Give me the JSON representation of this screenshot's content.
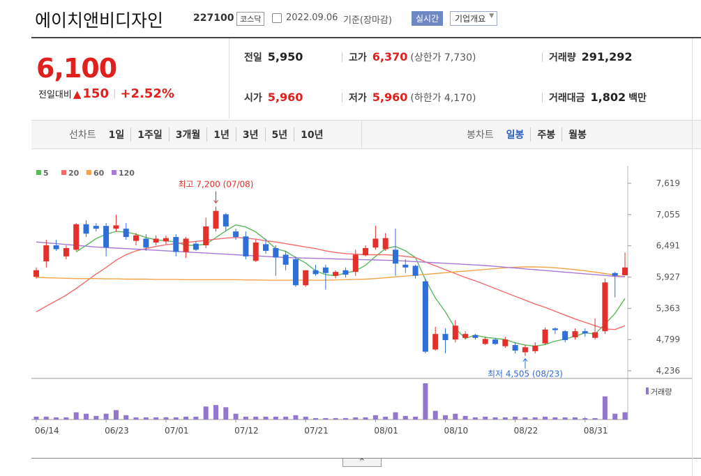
{
  "header": {
    "name": "에이치앤비디자인",
    "code": "227100",
    "market": "코스닥",
    "date": "2022.09.06",
    "basis": "기준(장마감)",
    "realtime_button": "실시간",
    "company_button": "기업개요"
  },
  "quote": {
    "price": "6,100",
    "change_label": "전일대비",
    "change": "150",
    "change_rate": "+2.52%",
    "rows": [
      [
        {
          "label": "전일",
          "value": "5,950"
        },
        {
          "label": "고가",
          "value": "6,370",
          "note": "(상한가 7,730)"
        },
        {
          "label": "거래량",
          "value": "291,292"
        }
      ],
      [
        {
          "label": "시가",
          "value": "5,960"
        },
        {
          "label": "저가",
          "value": "5,960",
          "note": "(하한가 4,170)"
        },
        {
          "label": "거래대금",
          "value": "1,802",
          "unit": "백만"
        }
      ]
    ]
  },
  "tabs": {
    "line": {
      "label": "선차트",
      "options": [
        "1일",
        "1주일",
        "3개월",
        "1년",
        "3년",
        "5년",
        "10년"
      ]
    },
    "candle": {
      "label": "봉차트",
      "options": [
        "일봉",
        "주봉",
        "월봉"
      ],
      "selected": 0
    }
  },
  "chart_data": {
    "type": "candlestick",
    "categories": [
      "06/14",
      null,
      null,
      null,
      null,
      null,
      null,
      "06/23",
      null,
      null,
      null,
      null,
      null,
      "07/01",
      null,
      null,
      null,
      null,
      null,
      null,
      "07/12",
      null,
      null,
      null,
      null,
      null,
      null,
      "07/21",
      null,
      null,
      null,
      null,
      null,
      null,
      "08/01",
      null,
      null,
      null,
      null,
      null,
      null,
      "08/10",
      null,
      null,
      null,
      null,
      null,
      null,
      "08/22",
      null,
      null,
      null,
      null,
      null,
      null,
      "08/31",
      null,
      null,
      null,
      null
    ],
    "open": [
      5930,
      6210,
      6500,
      6300,
      6420,
      6880,
      6850,
      6850,
      6800,
      6800,
      6580,
      6620,
      6550,
      6570,
      6650,
      6380,
      6530,
      6500,
      6800,
      7060,
      6750,
      6660,
      6220,
      6520,
      6450,
      6330,
      6250,
      5780,
      6050,
      6100,
      5950,
      6050,
      6020,
      6320,
      6460,
      6430,
      6420,
      6150,
      6130,
      5850,
      4620,
      4900,
      4800,
      4830,
      4880,
      4720,
      4800,
      4680,
      4700,
      4570,
      4590,
      4730,
      5000,
      4950,
      4840,
      4950,
      4830,
      4950,
      6000,
      5960
    ],
    "high": [
      6100,
      6600,
      6600,
      6500,
      6900,
      6950,
      6900,
      6900,
      7050,
      6900,
      6720,
      6700,
      6680,
      6680,
      6700,
      6650,
      6570,
      7000,
      7200,
      7080,
      6800,
      6750,
      6600,
      6620,
      6500,
      6400,
      6300,
      6050,
      6150,
      6150,
      6050,
      6100,
      6420,
      6500,
      6850,
      6720,
      6800,
      6250,
      6150,
      5900,
      5030,
      5000,
      5150,
      4950,
      4900,
      4850,
      4830,
      4850,
      4750,
      4700,
      4750,
      5020,
      5020,
      4970,
      5000,
      5000,
      5180,
      5900,
      6020,
      6370
    ],
    "low": [
      5900,
      6100,
      6400,
      6250,
      6400,
      6650,
      6750,
      6300,
      6750,
      6600,
      6500,
      6400,
      6500,
      6520,
      6300,
      6270,
      6400,
      6450,
      6750,
      6750,
      6600,
      6250,
      6200,
      6350,
      5950,
      6050,
      5750,
      5750,
      5950,
      5700,
      5900,
      5920,
      5950,
      6300,
      6420,
      6400,
      5950,
      6000,
      5900,
      4550,
      4600,
      4550,
      4750,
      4800,
      4800,
      4700,
      4700,
      4650,
      4550,
      4505,
      4550,
      4700,
      4900,
      4750,
      4800,
      4850,
      4800,
      4900,
      5560,
      5960
    ],
    "close": [
      6050,
      6500,
      6430,
      6450,
      6880,
      6710,
      6800,
      6460,
      6860,
      6650,
      6680,
      6460,
      6620,
      6630,
      6380,
      6620,
      6420,
      6840,
      7120,
      6840,
      6650,
      6300,
      6550,
      6400,
      6280,
      6150,
      5780,
      6050,
      5980,
      6000,
      6020,
      5970,
      6330,
      6450,
      6620,
      6630,
      6170,
      6100,
      5950,
      4580,
      4900,
      4790,
      5050,
      4900,
      4830,
      4810,
      4720,
      4800,
      4600,
      4660,
      4690,
      4980,
      4970,
      4790,
      4950,
      4910,
      4930,
      5830,
      5950,
      6100
    ],
    "up_color": "#e3302b",
    "down_color": "#2f6fd8",
    "series": [
      {
        "name": "5",
        "color": "#5cb85c",
        "values": [
          null,
          null,
          null,
          null,
          6380,
          6500,
          6620,
          6700,
          6750,
          6740,
          6700,
          6640,
          6600,
          6580,
          6560,
          6500,
          6500,
          6520,
          6640,
          6760,
          6870,
          6830,
          6740,
          6600,
          6440,
          6390,
          6280,
          6180,
          6040,
          5970,
          5950,
          6000,
          6040,
          6140,
          6300,
          6440,
          6480,
          6400,
          6280,
          5880,
          5550,
          5300,
          5000,
          4820,
          4880,
          4840,
          4820,
          4800,
          4740,
          4700,
          4680,
          4710,
          4770,
          4810,
          4860,
          4920,
          4900,
          5080,
          5270,
          5540
        ]
      },
      {
        "name": "20",
        "color": "#f26b6b",
        "values": [
          5300,
          5400,
          5500,
          5600,
          5720,
          5850,
          5980,
          6100,
          6230,
          6330,
          6400,
          6440,
          6480,
          6510,
          6530,
          6550,
          6570,
          6590,
          6610,
          6630,
          6640,
          6630,
          6610,
          6580,
          6560,
          6530,
          6500,
          6470,
          6440,
          6400,
          6370,
          6350,
          6340,
          6330,
          6330,
          6330,
          6320,
          6300,
          6280,
          6200,
          6130,
          6060,
          5990,
          5920,
          5860,
          5790,
          5720,
          5650,
          5580,
          5510,
          5440,
          5380,
          5310,
          5240,
          5170,
          5110,
          5050,
          4990,
          4980,
          5050
        ]
      },
      {
        "name": "60",
        "color": "#f5a34a",
        "values": [
          5920,
          5915,
          5910,
          5905,
          5900,
          5900,
          5900,
          5895,
          5895,
          5890,
          5890,
          5890,
          5885,
          5885,
          5885,
          5880,
          5880,
          5880,
          5880,
          5880,
          5880,
          5875,
          5875,
          5870,
          5870,
          5870,
          5870,
          5870,
          5870,
          5870,
          5875,
          5880,
          5885,
          5890,
          5900,
          5915,
          5930,
          5945,
          5960,
          5975,
          5990,
          6005,
          6020,
          6035,
          6050,
          6065,
          6080,
          6095,
          6105,
          6110,
          6110,
          6105,
          6095,
          6080,
          6060,
          6040,
          6015,
          5990,
          5960,
          5935
        ]
      },
      {
        "name": "120",
        "color": "#a77ad8",
        "values": [
          6560,
          6545,
          6530,
          6515,
          6500,
          6485,
          6470,
          6460,
          6450,
          6440,
          6430,
          6420,
          6410,
          6400,
          6390,
          6380,
          6370,
          6360,
          6350,
          6340,
          6330,
          6320,
          6310,
          6300,
          6290,
          6280,
          6275,
          6270,
          6265,
          6260,
          6255,
          6250,
          6245,
          6240,
          6235,
          6230,
          6225,
          6215,
          6205,
          6195,
          6185,
          6175,
          6165,
          6155,
          6145,
          6135,
          6120,
          6105,
          6090,
          6075,
          6060,
          6045,
          6030,
          6015,
          6000,
          5985,
          5970,
          5955,
          5940,
          5930
        ]
      }
    ],
    "volume": {
      "name": "거래량",
      "color": "#9277cc",
      "values": [
        116000,
        116000,
        87000,
        87000,
        290000,
        232000,
        145000,
        232000,
        377000,
        174000,
        87000,
        87000,
        87000,
        87000,
        87000,
        116000,
        116000,
        522000,
        580000,
        493000,
        232000,
        116000,
        116000,
        116000,
        116000,
        116000,
        174000,
        116000,
        58000,
        58000,
        58000,
        58000,
        87000,
        87000,
        174000,
        116000,
        290000,
        145000,
        116000,
        1450000,
        348000,
        174000,
        232000,
        145000,
        87000,
        116000,
        87000,
        87000,
        116000,
        87000,
        87000,
        116000,
        87000,
        87000,
        87000,
        58000,
        58000,
        928000,
        232000,
        291292
      ]
    },
    "ylim": [
      4236,
      7619
    ],
    "yticks": [
      {
        "value": 4236,
        "label": "4,236"
      },
      {
        "value": 4799,
        "label": "4,799"
      },
      {
        "value": 5363,
        "label": "5,363"
      },
      {
        "value": 5927,
        "label": "5,927"
      },
      {
        "value": 6491,
        "label": "6,491"
      },
      {
        "value": 7055,
        "label": "7,055"
      },
      {
        "value": 7619,
        "label": "7,619"
      }
    ],
    "high_label": "최고 7,200 (07/08)",
    "high_color": "#e3302b",
    "low_label": "최저 4,505 (08/23)",
    "low_color": "#2f6fd8"
  }
}
